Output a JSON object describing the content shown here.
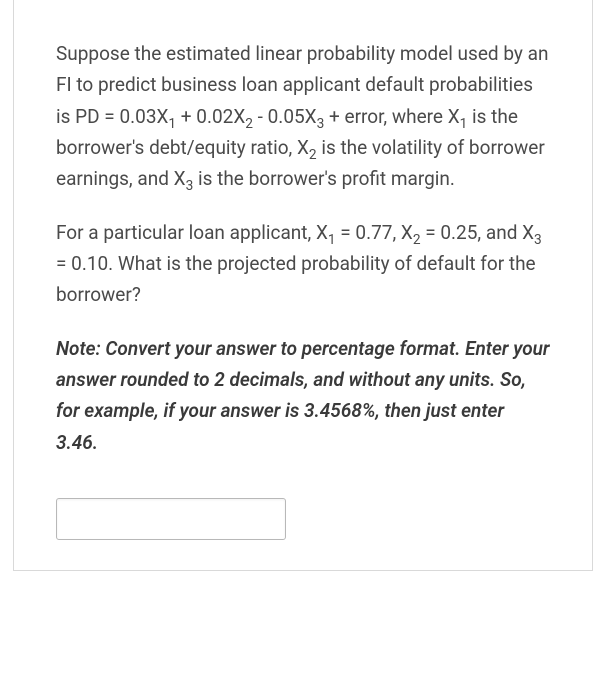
{
  "card": {
    "background_color": "#ffffff",
    "border_color": "#d9d9d9",
    "text_color": "#4a4a4a",
    "note_color": "#3a3a3a",
    "font_size_pt": 14,
    "line_height": 1.65
  },
  "p1": {
    "t1": "Suppose the estimated linear probability model used by an FI to predict business loan applicant default probabilities is PD = 0.03X",
    "s1": "1",
    "t2": " + 0.02X",
    "s2": "2",
    "t3": " - 0.05X",
    "s3": "3",
    "t4": " + error, where X",
    "s4": "1",
    "t5": " is the borrower's debt/equity ratio, X",
    "s5": "2",
    "t6": " is the volatility of borrower earnings, and X",
    "s6": "3",
    "t7": " is the borrower's profit margin."
  },
  "p2": {
    "t1": "For a particular loan applicant, X",
    "s1": "1",
    "t2": " = 0.77,  X",
    "s2": "2",
    "t3": " = 0.25,  and  X",
    "s3": "3",
    "t4": " = 0.10.    What is the projected probability of default for the borrower?"
  },
  "note": {
    "text": "Note: Convert your answer to percentage format. Enter your answer rounded to 2 decimals, and without any units. So, for example, if your answer is 3.4568%, then just enter 3.46."
  },
  "answer": {
    "value": "",
    "placeholder": ""
  }
}
